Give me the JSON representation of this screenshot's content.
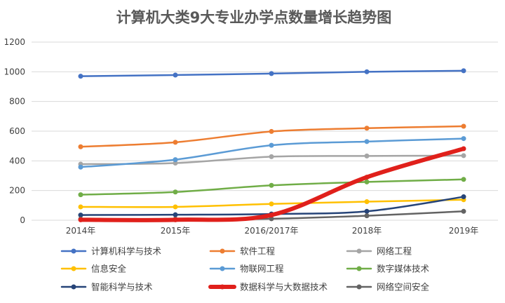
{
  "chart_data": {
    "type": "line",
    "title": "计算机大类9大专业办学点数量增长趋势图",
    "categories": [
      "2014年",
      "2015年",
      "2016/2017年",
      "2018年",
      "2019年"
    ],
    "ylim": [
      0,
      1200
    ],
    "yticks": [
      "0",
      "200",
      "400",
      "600",
      "800",
      "1000",
      "1200"
    ],
    "grid": true,
    "legend_position": "bottom",
    "series": [
      {
        "name": "计算机科学与技术",
        "values": [
          970,
          978,
          988,
          1000,
          1007
        ],
        "color": "#4472c4"
      },
      {
        "name": "软件工程",
        "values": [
          495,
          525,
          598,
          620,
          633
        ],
        "color": "#ed7d31"
      },
      {
        "name": "网络工程",
        "values": [
          378,
          385,
          428,
          433,
          435
        ],
        "color": "#a5a5a5"
      },
      {
        "name": "信息安全",
        "values": [
          90,
          90,
          110,
          125,
          138
        ],
        "color": "#ffc000"
      },
      {
        "name": "物联网工程",
        "values": [
          358,
          408,
          505,
          530,
          550
        ],
        "color": "#5b9bd5"
      },
      {
        "name": "数字媒体技术",
        "values": [
          172,
          190,
          235,
          258,
          275
        ],
        "color": "#70ad47"
      },
      {
        "name": "智能科学与技术",
        "values": [
          35,
          37,
          42,
          60,
          158
        ],
        "color": "#264478"
      },
      {
        "name": "数据科学与大数据技术",
        "values": [
          3,
          3,
          35,
          290,
          482
        ],
        "color": "#e0201b",
        "emphasis": true
      },
      {
        "name": "网络空间安全",
        "values": [
          8,
          8,
          10,
          30,
          60
        ],
        "color": "#636363"
      }
    ]
  }
}
